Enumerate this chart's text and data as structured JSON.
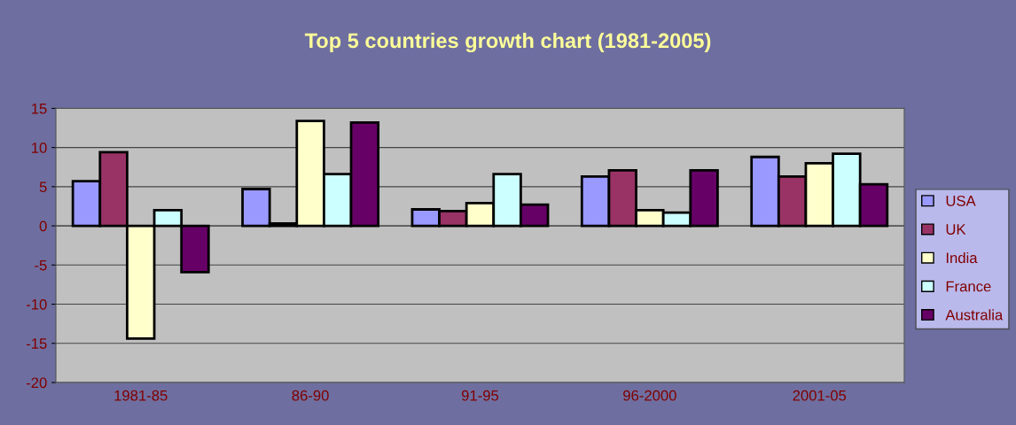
{
  "chart_data": {
    "type": "bar",
    "title": "Top 5 countries growth chart (1981-2005)",
    "categories": [
      "1981-85",
      "86-90",
      "91-95",
      "96-2000",
      "2001-05"
    ],
    "series": [
      {
        "name": "USA",
        "color": "#9999ff",
        "values": [
          5.7,
          4.7,
          2.1,
          6.3,
          8.8
        ]
      },
      {
        "name": "UK",
        "color": "#993366",
        "values": [
          9.4,
          0.3,
          1.9,
          7.1,
          6.3
        ]
      },
      {
        "name": "India",
        "color": "#ffffcc",
        "values": [
          -14.4,
          13.4,
          2.9,
          2.0,
          8.0
        ]
      },
      {
        "name": "France",
        "color": "#ccffff",
        "values": [
          2.0,
          6.6,
          6.6,
          1.7,
          9.2
        ]
      },
      {
        "name": "Australia",
        "color": "#660066",
        "values": [
          -5.9,
          13.2,
          2.7,
          7.1,
          5.3
        ]
      }
    ],
    "ylim": [
      -20,
      15
    ],
    "yticks": [
      -20,
      -15,
      -10,
      -5,
      0,
      5,
      10,
      15
    ],
    "grid": "y",
    "legend": "right"
  }
}
